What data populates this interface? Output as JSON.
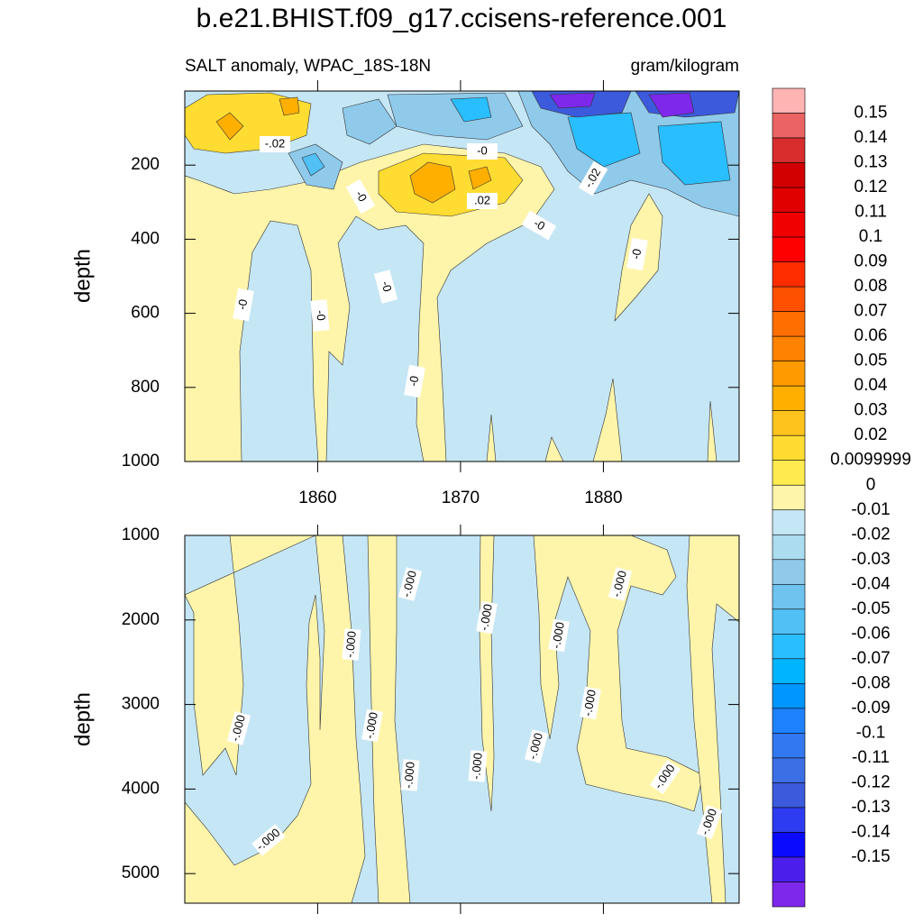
{
  "chart_data": [
    {
      "type": "contour",
      "title": "b.e21.BHIST.f09_g17.ccisens-reference.001",
      "left_string": "SALT anomaly, WPAC_18S-18N",
      "right_string": "gram/kilogram",
      "ylabel": "depth",
      "xlim": [
        1850.7,
        1889.5
      ],
      "xticks": [
        1860,
        1870,
        1880
      ],
      "ylim": [
        0,
        1000
      ],
      "yticks": [
        200,
        400,
        600,
        800,
        1000
      ],
      "y_reversed": true,
      "contour_labels": [
        "-.02",
        "-0",
        "-0",
        ".02",
        "-.02",
        "-0",
        "-0",
        "-0",
        "-0",
        "-0",
        "-0"
      ]
    },
    {
      "type": "contour",
      "ylabel": "depth",
      "xlim": [
        1850.7,
        1889.5
      ],
      "xticks": [
        1860,
        1870,
        1880
      ],
      "ylim": [
        1000,
        5350
      ],
      "yticks": [
        1000,
        2000,
        3000,
        4000,
        5000
      ],
      "y_reversed": true,
      "contour_labels": [
        "-.000",
        "-.000",
        "-.000",
        "-.000",
        "-.000",
        "-.000",
        "-.000",
        "-.000",
        "-.000",
        "-.000",
        "-.000",
        "-.000",
        "-.000",
        "-.000"
      ]
    },
    {
      "type": "colorbar",
      "levels": [
        0.15,
        0.14,
        0.13,
        0.12,
        0.11,
        0.1,
        0.09,
        0.08,
        0.07,
        0.06,
        0.05,
        0.04,
        0.03,
        0.02,
        0.0099999,
        0,
        -0.01,
        -0.02,
        -0.03,
        -0.04,
        -0.05,
        -0.06,
        -0.07,
        -0.08,
        -0.09,
        -0.1,
        -0.11,
        -0.12,
        -0.13,
        -0.14,
        -0.15
      ],
      "colors": [
        "#ffb4b4",
        "#eb6464",
        "#d72d2d",
        "#d20000",
        "#e10000",
        "#f00000",
        "#ff0000",
        "#ff2d00",
        "#ff5000",
        "#ff6e00",
        "#ff8200",
        "#ff9b00",
        "#ffaf00",
        "#ffc31e",
        "#ffdc32",
        "#ffeb50",
        "#fff5aa",
        "#c5e6f5",
        "#acdcf0",
        "#8fcaeb",
        "#6ec3ef",
        "#50c0f5",
        "#28beff",
        "#00b4ff",
        "#0096ff",
        "#1e82ff",
        "#3278f0",
        "#3c6ee6",
        "#3c5adc",
        "#2d3cf0",
        "#0a0aff",
        "#4b1eeb",
        "#7d28eb"
      ]
    }
  ]
}
